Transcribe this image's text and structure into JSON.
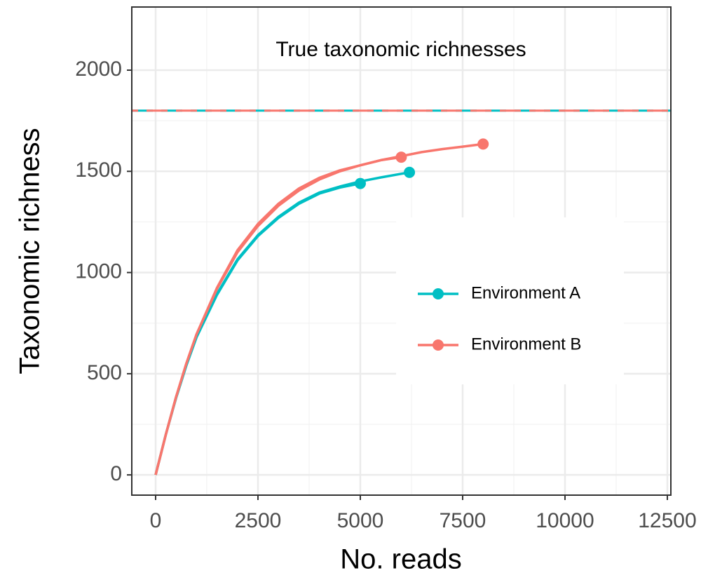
{
  "chart_data": {
    "type": "line",
    "annotation": "True taxonomic richnesses",
    "xlabel": "No. reads",
    "ylabel": "Taxonomic richness",
    "xlim": [
      -582,
      12586
    ],
    "ylim": [
      -100,
      2312
    ],
    "xticks": [
      0,
      2500,
      5000,
      7500,
      10000,
      12500
    ],
    "yticks": [
      0,
      500,
      1000,
      1500,
      2000
    ],
    "grid": true,
    "legend": "right",
    "series": [
      {
        "name": "Environment A",
        "color": "#00bfc4",
        "true_richness": 1800,
        "curves": [
          {
            "x": [
              0,
              250,
              500,
              750,
              1000,
              1500,
              2000,
              2500,
              3000,
              3500,
              4000,
              4500,
              5000
            ],
            "values": [
              0,
              200,
              380,
              540,
              680,
              890,
              1060,
              1180,
              1270,
              1340,
              1390,
              1420,
              1440
            ]
          },
          {
            "x": [
              0,
              250,
              500,
              750,
              1000,
              1500,
              2000,
              2500,
              3000,
              3500,
              4000,
              4500,
              5000,
              5500,
              6000,
              6200
            ],
            "values": [
              0,
              200,
              385,
              545,
              685,
              895,
              1065,
              1185,
              1275,
              1345,
              1395,
              1425,
              1450,
              1470,
              1488,
              1495
            ]
          }
        ]
      },
      {
        "name": "Environment B",
        "color": "#f8766d",
        "true_richness": 1800,
        "curves": [
          {
            "x": [
              0,
              250,
              500,
              750,
              1000,
              1500,
              2000,
              2500,
              3000,
              3500,
              4000,
              4500,
              5000,
              5500,
              6000
            ],
            "values": [
              0,
              200,
              385,
              550,
              695,
              920,
              1100,
              1230,
              1330,
              1405,
              1460,
              1500,
              1530,
              1555,
              1570
            ]
          },
          {
            "x": [
              0,
              250,
              500,
              750,
              1000,
              1500,
              2000,
              2500,
              3000,
              3500,
              4000,
              4500,
              5000,
              5500,
              6000,
              6500,
              7000,
              7500,
              8000
            ],
            "values": [
              0,
              200,
              385,
              550,
              695,
              925,
              1110,
              1240,
              1340,
              1415,
              1468,
              1505,
              1530,
              1555,
              1575,
              1595,
              1610,
              1622,
              1635
            ]
          }
        ]
      }
    ]
  }
}
